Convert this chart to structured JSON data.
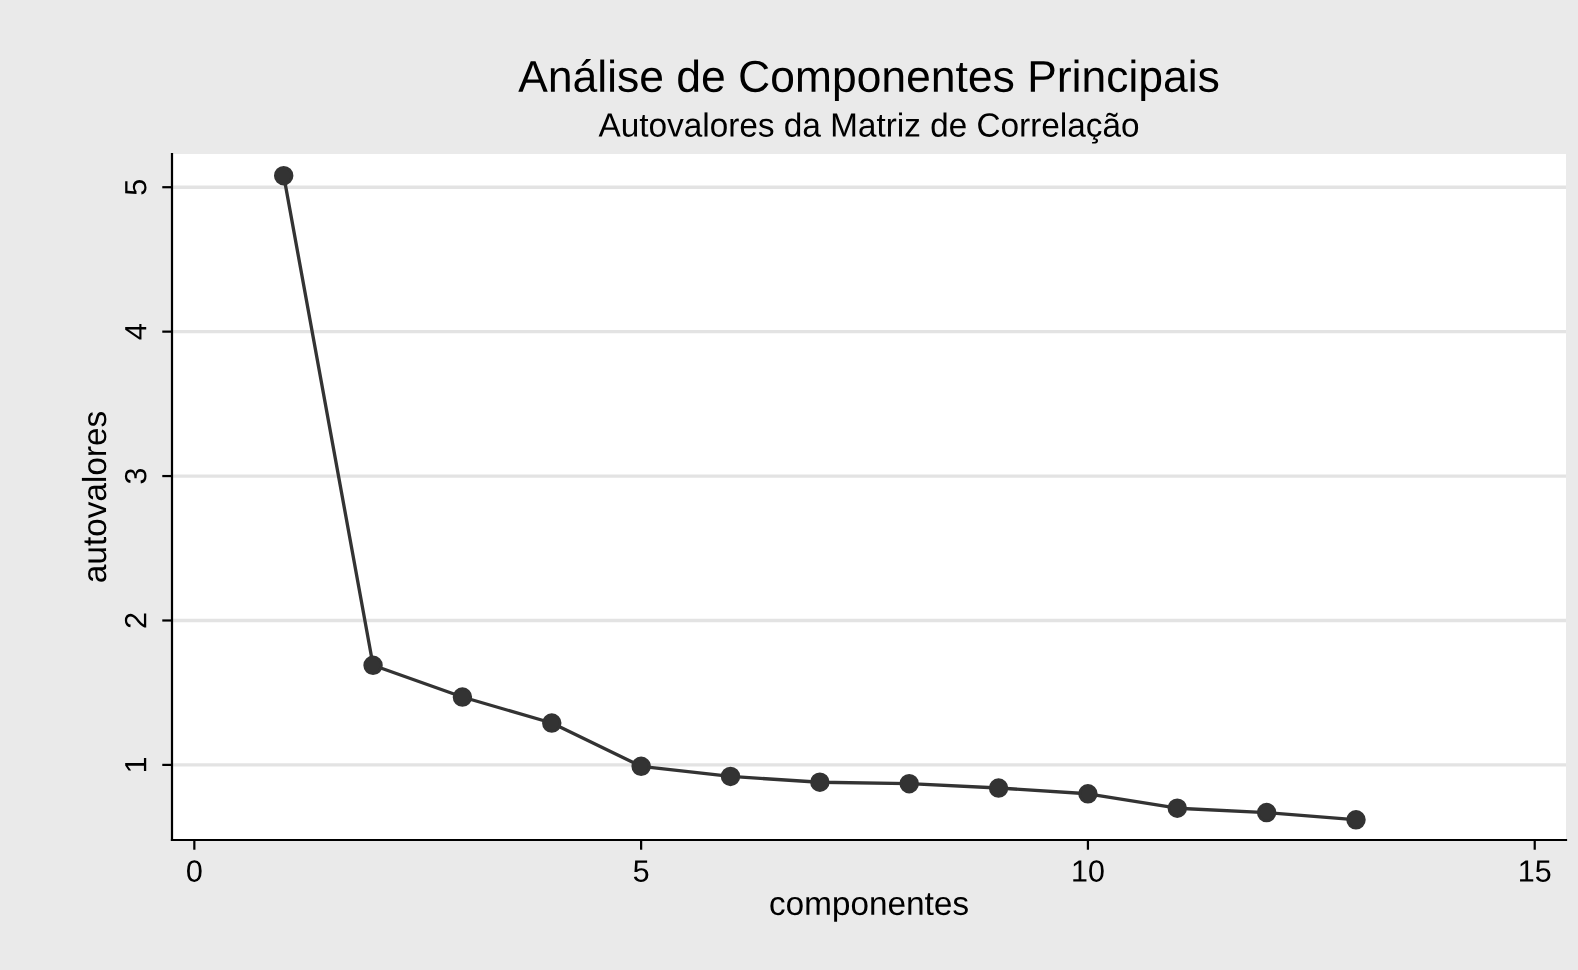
{
  "chart_data": {
    "type": "line",
    "title": "Análise de Componentes Principais",
    "subtitle": "Autovalores da Matriz de Correlação",
    "xlabel": "componentes",
    "ylabel": "autovalores",
    "x": [
      1,
      2,
      3,
      4,
      5,
      6,
      7,
      8,
      9,
      10,
      11,
      12,
      13
    ],
    "series": [
      {
        "color": "#333333",
        "values": [
          5.08,
          1.69,
          1.47,
          1.29,
          0.99,
          0.92,
          0.88,
          0.87,
          0.84,
          0.8,
          0.7,
          0.67,
          0.62
        ]
      }
    ],
    "xlim": [
      -0.25,
      15.35
    ],
    "ylim": [
      0.48,
      5.23
    ],
    "xticks": [
      0,
      5,
      10,
      15
    ],
    "yticks": [
      1,
      2,
      3,
      4,
      5
    ],
    "grid": "y",
    "marker": "circle",
    "line_style": "solid",
    "legend": false
  }
}
